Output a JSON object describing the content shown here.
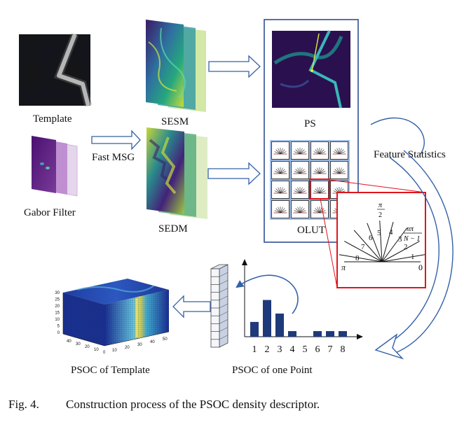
{
  "labels": {
    "template": "Template",
    "gabor": "Gabor Filter",
    "fast_msg": "Fast MSG",
    "sesm": "SESM",
    "sedm": "SEDM",
    "ps": "PS",
    "olut": "OLUT",
    "feature_statistics": "Feature Statistics",
    "psoc_template": "PSOC of Template",
    "psoc_point": "PSOC of one Point"
  },
  "orientation": {
    "bins": [
      "1",
      "2",
      "3",
      "4",
      "5",
      "6",
      "7",
      "8"
    ],
    "pi": "π",
    "zero": "0",
    "pi_half_num": "π",
    "pi_half_den": "2",
    "npi_num": "nπ",
    "npi_den": "N − 1"
  },
  "histogram": {
    "categories": [
      "1",
      "2",
      "3",
      "4",
      "5",
      "6",
      "7",
      "8"
    ],
    "values": [
      0.37,
      0.92,
      0.58,
      0.14,
      0.0,
      0.14,
      0.14,
      0.14
    ]
  },
  "cube": {
    "z_ticks": [
      "30",
      "25",
      "20",
      "15",
      "10",
      "5",
      "0"
    ],
    "x_ticks": [
      "0",
      "10",
      "20",
      "30",
      "40"
    ],
    "y_ticks": [
      "10",
      "20",
      "30",
      "40",
      "50"
    ]
  },
  "caption": {
    "number": "Fig. 4.",
    "text": "Construction process of the PSOC density descriptor."
  },
  "colors": {
    "frame_blue": "#2f4f94",
    "arrow_blue": "#3461a8",
    "highlight_red": "#e0141c",
    "bar_navy": "#1e3a7a",
    "cell_blue": "#8aaee0"
  }
}
